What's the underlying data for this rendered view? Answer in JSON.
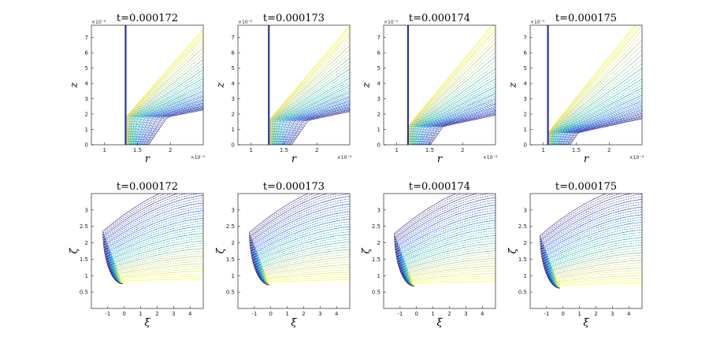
{
  "chart_data": [
    {
      "type": "contour",
      "title": "t=0.000172",
      "xlabel": "r",
      "ylabel": "z",
      "xlim": [
        0.8,
        2.5
      ],
      "ylim": [
        0,
        7.8
      ],
      "xticks": [
        "1",
        "1.5",
        "2"
      ],
      "yticks": [
        "0",
        "1",
        "2",
        "3",
        "4",
        "5",
        "6",
        "7"
      ],
      "x_multiplier": "×10⁻⁴",
      "y_multiplier": "×10⁻⁵",
      "front": {
        "wall_r": 1.32,
        "apex_r": 1.42,
        "apex_z": 1.8,
        "slope": 1.7,
        "top_r": 1.62
      },
      "level_count": 40
    },
    {
      "type": "contour",
      "title": "t=0.000173",
      "xlabel": "r",
      "ylabel": "z",
      "xlim": [
        0.8,
        2.5
      ],
      "ylim": [
        0,
        7.8
      ],
      "xticks": [
        "1",
        "1.5",
        "2"
      ],
      "yticks": [
        "0",
        "1",
        "2",
        "3",
        "4",
        "5",
        "6",
        "7"
      ],
      "x_multiplier": "×10⁻⁴",
      "y_multiplier": "×10⁻⁵",
      "front": {
        "wall_r": 1.27,
        "apex_r": 1.35,
        "apex_z": 1.6,
        "slope": 1.75,
        "top_r": 1.5
      },
      "level_count": 40
    },
    {
      "type": "contour",
      "title": "t=0.000174",
      "xlabel": "r",
      "ylabel": "z",
      "xlim": [
        0.8,
        2.5
      ],
      "ylim": [
        0,
        7.8
      ],
      "xticks": [
        "1",
        "1.5",
        "2"
      ],
      "yticks": [
        "0",
        "1",
        "2",
        "3",
        "4",
        "5",
        "6",
        "7"
      ],
      "x_multiplier": "×10⁻⁴",
      "y_multiplier": "×10⁻⁵",
      "front": {
        "wall_r": 1.17,
        "apex_r": 1.24,
        "apex_z": 1.2,
        "slope": 1.8,
        "top_r": 1.3
      },
      "level_count": 40
    },
    {
      "type": "contour",
      "title": "t=0.000175",
      "xlabel": "r",
      "ylabel": "z",
      "xlim": [
        0.8,
        2.5
      ],
      "ylim": [
        0,
        7.8
      ],
      "xticks": [
        "1",
        "1.5",
        "2"
      ],
      "yticks": [
        "0",
        "1",
        "2",
        "3",
        "4",
        "5",
        "6",
        "7"
      ],
      "x_multiplier": "×10⁻⁴",
      "y_multiplier": "×10⁻⁵",
      "front": {
        "wall_r": 1.07,
        "apex_r": 1.13,
        "apex_z": 0.8,
        "slope": 1.85,
        "top_r": 1.1
      },
      "level_count": 40
    },
    {
      "type": "contour",
      "title": "t=0.000172",
      "xlabel": "ξ",
      "ylabel": "ζ",
      "xlim": [
        -2,
        4.8
      ],
      "ylim": [
        0,
        3.5
      ],
      "xticks": [
        "-1",
        "0",
        "1",
        "2",
        "3",
        "4"
      ],
      "yticks": [
        "0.5",
        "1",
        "1.5",
        "2",
        "2.5",
        "3"
      ],
      "front": {
        "nose_x": -0.1,
        "band_z": 0.75,
        "level_count": 40
      }
    },
    {
      "type": "contour",
      "title": "t=0.000173",
      "xlabel": "ξ",
      "ylabel": "ζ",
      "xlim": [
        -2,
        4.8
      ],
      "ylim": [
        0,
        3.5
      ],
      "xticks": [
        "-1",
        "0",
        "1",
        "2",
        "3",
        "4"
      ],
      "yticks": [
        "0.5",
        "1",
        "1.5",
        "2",
        "2.5",
        "3"
      ],
      "front": {
        "nose_x": -0.1,
        "band_z": 0.72,
        "level_count": 40
      }
    },
    {
      "type": "contour",
      "title": "t=0.000174",
      "xlabel": "ξ",
      "ylabel": "ζ",
      "xlim": [
        -2,
        4.8
      ],
      "ylim": [
        0,
        3.5
      ],
      "xticks": [
        "-1",
        "0",
        "1",
        "2",
        "3",
        "4"
      ],
      "yticks": [
        "0.5",
        "1",
        "1.5",
        "2",
        "2.5",
        "3"
      ],
      "front": {
        "nose_x": -0.15,
        "band_z": 0.68,
        "level_count": 40
      }
    },
    {
      "type": "contour",
      "title": "t=0.000175",
      "xlabel": "ξ",
      "ylabel": "ζ",
      "xlim": [
        -2,
        4.8
      ],
      "ylim": [
        0,
        3.5
      ],
      "xticks": [
        "-1",
        "0",
        "1",
        "2",
        "3",
        "4"
      ],
      "yticks": [
        "0.5",
        "1",
        "1.5",
        "2",
        "2.5",
        "3"
      ],
      "front": {
        "nose_x": -0.2,
        "band_z": 0.62,
        "level_count": 40
      }
    }
  ]
}
